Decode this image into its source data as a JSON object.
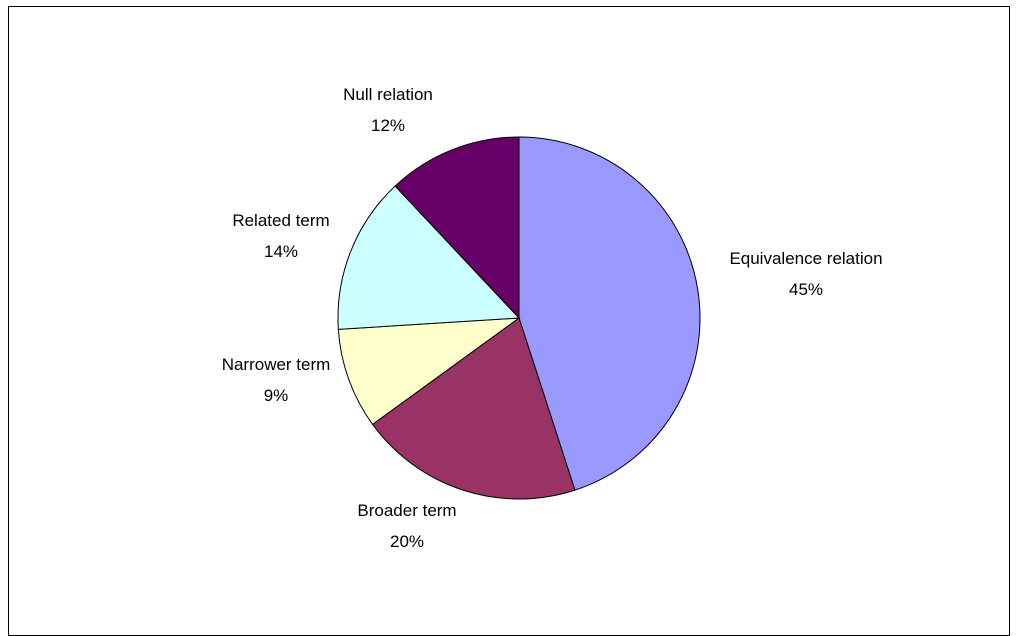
{
  "chart_data": {
    "type": "pie",
    "title": "",
    "slices": [
      {
        "label": "Equivalence relation",
        "value": 45,
        "value_label": "45%",
        "color": "#9999FF"
      },
      {
        "label": "Broader term",
        "value": 20,
        "value_label": "20%",
        "color": "#993366"
      },
      {
        "label": "Narrower term",
        "value": 9,
        "value_label": "9%",
        "color": "#FFFFCC"
      },
      {
        "label": "Related term",
        "value": 14,
        "value_label": "14%",
        "color": "#CCFFFF"
      },
      {
        "label": "Null relation",
        "value": 12,
        "value_label": "12%",
        "color": "#660066"
      }
    ],
    "start_angle": "12 o'clock",
    "direction": "clockwise",
    "legend": "none"
  }
}
